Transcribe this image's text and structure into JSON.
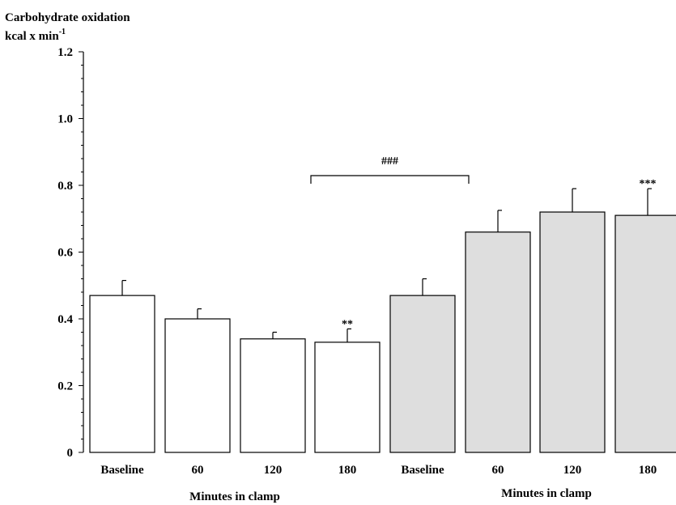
{
  "chart_data": {
    "type": "bar",
    "ylabel_line1": "Carbohydrate oxidation",
    "ylabel_line2_main": "kcal x min",
    "ylabel_line2_sup": "-1",
    "ylim": [
      0,
      1.2
    ],
    "yticks": [
      "0",
      "0.2",
      "0.4",
      "0.6",
      "0.8",
      "1.0",
      "1.2"
    ],
    "categories": [
      "Baseline",
      "60",
      "120",
      "180",
      "Baseline",
      "60",
      "120",
      "180"
    ],
    "values": [
      0.47,
      0.4,
      0.34,
      0.33,
      0.47,
      0.66,
      0.72,
      0.71
    ],
    "errors": [
      0.045,
      0.03,
      0.02,
      0.04,
      0.05,
      0.065,
      0.07,
      0.08
    ],
    "bar_colors": [
      "#ffffff",
      "#ffffff",
      "#ffffff",
      "#ffffff",
      "#dedede",
      "#dedede",
      "#dedede",
      "#dedede"
    ],
    "markers": [
      "",
      "",
      "",
      "**",
      "",
      "",
      "",
      "***"
    ],
    "group_labels": [
      "Minutes in clamp",
      "Minutes in clamp"
    ],
    "bracket_label": "###"
  }
}
